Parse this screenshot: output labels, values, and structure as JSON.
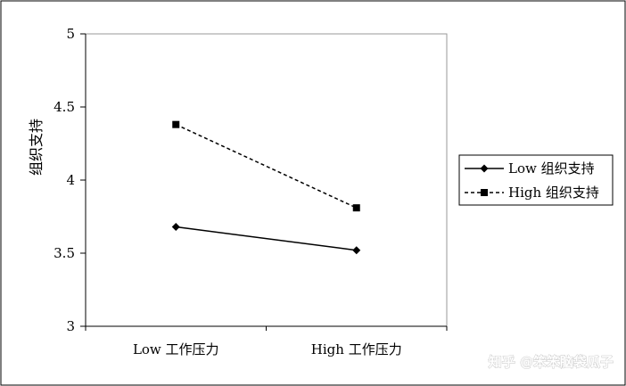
{
  "chart_data": {
    "type": "line",
    "title": "",
    "xlabel": "",
    "ylabel": "组织支持",
    "categories": [
      "Low 工作压力",
      "High 工作压力"
    ],
    "ylim": [
      3,
      5
    ],
    "yticks": [
      "3",
      "3.5",
      "4",
      "4.5",
      "5"
    ],
    "grid": false,
    "legend_position": "right",
    "series": [
      {
        "name": "Low 组织支持",
        "values": [
          3.68,
          3.52
        ],
        "line_style": "solid",
        "marker": "diamond",
        "color": "#000000"
      },
      {
        "name": "High 组织支持",
        "values": [
          4.38,
          3.81
        ],
        "line_style": "dashed",
        "marker": "square",
        "color": "#000000"
      }
    ]
  },
  "watermark": "知乎 @笨笨脑袋瓜子"
}
